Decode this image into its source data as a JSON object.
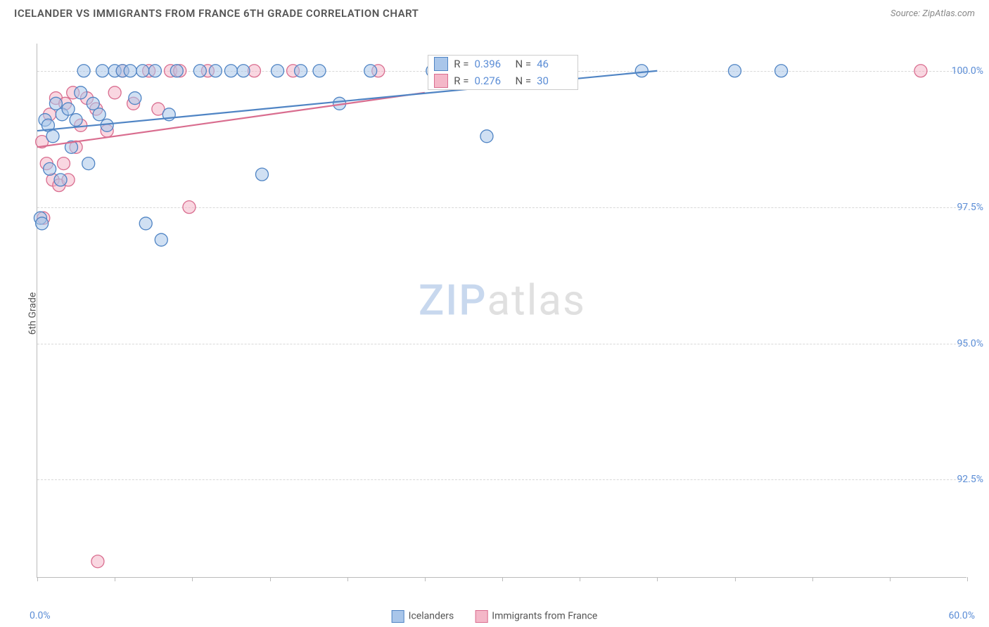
{
  "header": {
    "title": "ICELANDER VS IMMIGRANTS FROM FRANCE 6TH GRADE CORRELATION CHART",
    "source": "Source: ZipAtlas.com"
  },
  "watermark": {
    "part1": "ZIP",
    "part2": "atlas",
    "fontsize": 60
  },
  "chart": {
    "type": "scatter",
    "y_axis_title": "6th Grade",
    "background_color": "#ffffff",
    "grid_color": "#d8d8d8",
    "axis_color": "#bbbbbb",
    "tick_label_color": "#5b8dd6",
    "xlim": [
      0,
      60
    ],
    "ylim": [
      90.7,
      100.5
    ],
    "xlab_min": "0.0%",
    "xlab_max": "60.0%",
    "yticks": [
      {
        "v": 92.5,
        "label": "92.5%"
      },
      {
        "v": 95.0,
        "label": "95.0%"
      },
      {
        "v": 97.5,
        "label": "97.5%"
      },
      {
        "v": 100.0,
        "label": "100.0%"
      }
    ],
    "xticks_pct": [
      0,
      5,
      10,
      15,
      20,
      25,
      30,
      35,
      40,
      45,
      50,
      55,
      60
    ],
    "marker_radius": 9,
    "marker_stroke_width": 1.3,
    "trend_line_width": 2.2,
    "series_a": {
      "name": "Icelanders",
      "fill": "#a9c6ea",
      "stroke": "#4f84c4",
      "fill_opacity": 0.55,
      "R": "0.396",
      "N": "46",
      "trend": {
        "x1": 0,
        "y1": 98.9,
        "x2": 40,
        "y2": 100.0
      },
      "points": [
        [
          0.2,
          97.3
        ],
        [
          0.3,
          97.2
        ],
        [
          0.5,
          99.1
        ],
        [
          0.7,
          99.0
        ],
        [
          0.8,
          98.2
        ],
        [
          1.0,
          98.8
        ],
        [
          1.2,
          99.4
        ],
        [
          1.5,
          98.0
        ],
        [
          1.6,
          99.2
        ],
        [
          2.0,
          99.3
        ],
        [
          2.2,
          98.6
        ],
        [
          2.5,
          99.1
        ],
        [
          2.8,
          99.6
        ],
        [
          3.0,
          100.0
        ],
        [
          3.3,
          98.3
        ],
        [
          3.6,
          99.4
        ],
        [
          4.0,
          99.2
        ],
        [
          4.2,
          100.0
        ],
        [
          4.5,
          99.0
        ],
        [
          5.0,
          100.0
        ],
        [
          5.5,
          100.0
        ],
        [
          6.0,
          100.0
        ],
        [
          6.3,
          99.5
        ],
        [
          6.8,
          100.0
        ],
        [
          7.0,
          97.2
        ],
        [
          7.6,
          100.0
        ],
        [
          8.0,
          96.9
        ],
        [
          8.5,
          99.2
        ],
        [
          9.0,
          100.0
        ],
        [
          10.5,
          100.0
        ],
        [
          11.5,
          100.0
        ],
        [
          12.5,
          100.0
        ],
        [
          13.3,
          100.0
        ],
        [
          14.5,
          98.1
        ],
        [
          15.5,
          100.0
        ],
        [
          17.0,
          100.0
        ],
        [
          18.2,
          100.0
        ],
        [
          19.5,
          99.4
        ],
        [
          21.5,
          100.0
        ],
        [
          25.5,
          100.0
        ],
        [
          27.5,
          100.0
        ],
        [
          29.0,
          98.8
        ],
        [
          32.0,
          100.0
        ],
        [
          39.0,
          100.0
        ],
        [
          45.0,
          100.0
        ],
        [
          48.0,
          100.0
        ]
      ]
    },
    "series_b": {
      "name": "Immigrants from France",
      "fill": "#f4b7c8",
      "stroke": "#d96d8f",
      "fill_opacity": 0.55,
      "R": "0.276",
      "N": "30",
      "trend": {
        "x1": 0,
        "y1": 98.6,
        "x2": 25,
        "y2": 99.6
      },
      "points": [
        [
          0.3,
          98.7
        ],
        [
          0.4,
          97.3
        ],
        [
          0.6,
          98.3
        ],
        [
          0.8,
          99.2
        ],
        [
          1.0,
          98.0
        ],
        [
          1.2,
          99.5
        ],
        [
          1.4,
          97.9
        ],
        [
          1.7,
          98.3
        ],
        [
          1.8,
          99.4
        ],
        [
          2.0,
          98.0
        ],
        [
          2.3,
          99.6
        ],
        [
          2.5,
          98.6
        ],
        [
          2.8,
          99.0
        ],
        [
          3.2,
          99.5
        ],
        [
          3.8,
          99.3
        ],
        [
          3.9,
          91.0
        ],
        [
          4.5,
          98.9
        ],
        [
          5.0,
          99.6
        ],
        [
          5.5,
          100.0
        ],
        [
          6.2,
          99.4
        ],
        [
          7.2,
          100.0
        ],
        [
          7.8,
          99.3
        ],
        [
          8.6,
          100.0
        ],
        [
          9.2,
          100.0
        ],
        [
          9.8,
          97.5
        ],
        [
          11.0,
          100.0
        ],
        [
          14.0,
          100.0
        ],
        [
          16.5,
          100.0
        ],
        [
          22.0,
          100.0
        ],
        [
          57.0,
          100.0
        ]
      ]
    },
    "stat_legend": {
      "left_pct": 42,
      "top_y": 100.3
    },
    "bottom_legend_fontsize": 14
  }
}
